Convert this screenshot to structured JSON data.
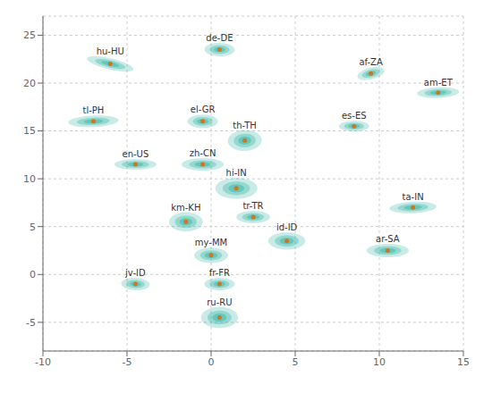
{
  "chart_data": {
    "type": "scatter",
    "x": [
      -6.0,
      0.5,
      9.5,
      13.5,
      -7.0,
      -0.5,
      2.0,
      8.5,
      -4.5,
      -0.5,
      1.5,
      12.0,
      -1.5,
      2.5,
      4.5,
      10.5,
      -4.5,
      0.0,
      0.5,
      0.5
    ],
    "y": [
      22.0,
      23.5,
      21.0,
      19.0,
      16.0,
      16.0,
      14.0,
      15.5,
      11.5,
      11.5,
      9.0,
      7.0,
      5.5,
      6.0,
      3.5,
      2.5,
      -1.0,
      2.0,
      -1.0,
      -4.5
    ],
    "labels": [
      "hu-HU",
      "de-DE",
      "af-ZA",
      "am-ET",
      "tl-PH",
      "el-GR",
      "th-TH",
      "es-ES",
      "en-US",
      "zh-CN",
      "hi-IN",
      "ta-IN",
      "km-KH",
      "tr-TR",
      "id-ID",
      "ar-SA",
      "jv-ID",
      "my-MM",
      "fr-FR",
      "ru-RU"
    ],
    "ellipses": {
      "color": "#3CB8A8",
      "width": [
        3.0,
        1.8,
        1.8,
        2.5,
        3.0,
        1.8,
        2.0,
        1.8,
        2.5,
        2.5,
        2.5,
        2.8,
        2.0,
        2.0,
        2.2,
        2.5,
        1.7,
        2.0,
        1.8,
        2.2
      ],
      "height": [
        1.1,
        1.4,
        1.1,
        1.1,
        1.2,
        1.4,
        2.2,
        1.1,
        1.1,
        1.3,
        2.2,
        1.2,
        2.0,
        1.3,
        1.8,
        1.4,
        1.3,
        1.6,
        1.3,
        2.2
      ],
      "angle": [
        -25,
        -5,
        35,
        5,
        5,
        0,
        -10,
        0,
        0,
        0,
        0,
        5,
        -15,
        0,
        0,
        0,
        -10,
        0,
        0,
        0
      ]
    },
    "color": "#CC7722",
    "xlim": [
      -10,
      15
    ],
    "ylim": [
      -8,
      27
    ],
    "xticks": [
      -10,
      -5,
      0,
      5,
      10,
      15
    ],
    "yticks": [
      -5,
      0,
      5,
      10,
      15,
      20,
      25
    ],
    "grid": true
  }
}
